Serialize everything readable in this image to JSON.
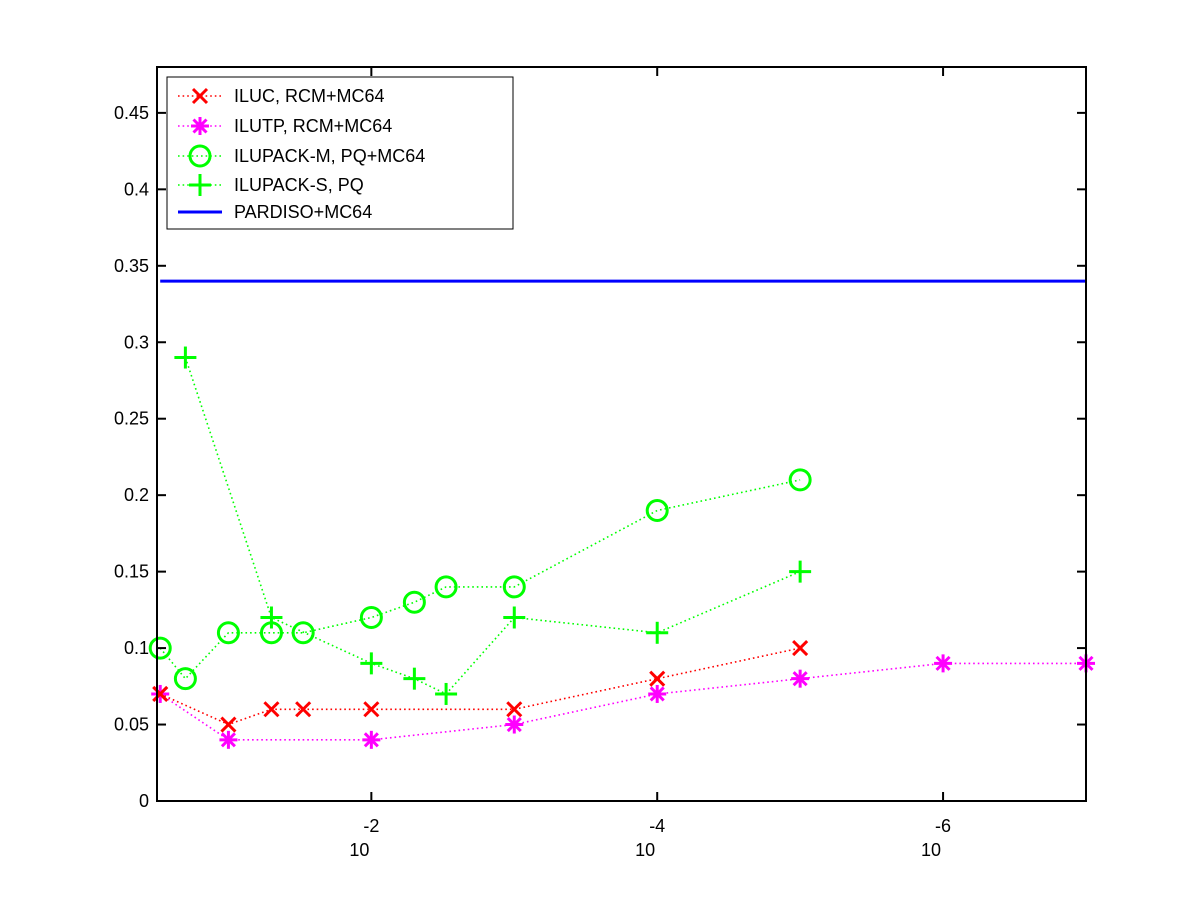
{
  "chart_data": {
    "type": "line",
    "title": "",
    "xlabel": "",
    "ylabel": "",
    "x_scale": "log",
    "x_direction": "decreasing",
    "xlim": [
      0.316,
      1e-07
    ],
    "ylim": [
      0,
      0.48
    ],
    "grid": false,
    "legend_position": "top-left",
    "y_ticks": [
      "0",
      "0.05",
      "0.1",
      "0.15",
      "0.2",
      "0.25",
      "0.3",
      "0.35",
      "0.4",
      "0.45"
    ],
    "x_ticks": [
      {
        "value": 0.01,
        "base": "10",
        "exp": "-2"
      },
      {
        "value": 0.0001,
        "base": "10",
        "exp": "-4"
      },
      {
        "value": 1e-06,
        "base": "10",
        "exp": "-6"
      }
    ],
    "series": [
      {
        "name": "ILUC, RCM+MC64",
        "color": "#ff0000",
        "marker": "x",
        "line_style": "dotted",
        "x": [
          0.3,
          0.1,
          0.05,
          0.03,
          0.01,
          0.001,
          0.0001,
          1e-05
        ],
        "y": [
          0.07,
          0.05,
          0.06,
          0.06,
          0.06,
          0.06,
          0.08,
          0.1
        ]
      },
      {
        "name": "ILUTP, RCM+MC64",
        "color": "#ff00ff",
        "marker": "asterisk",
        "line_style": "dotted",
        "x": [
          0.3,
          0.1,
          0.01,
          0.001,
          0.0001,
          1e-05,
          1e-06,
          1e-07
        ],
        "y": [
          0.07,
          0.04,
          0.04,
          0.05,
          0.07,
          0.08,
          0.09,
          0.09
        ]
      },
      {
        "name": "ILUPACK-M, PQ+MC64",
        "color": "#00ff00",
        "marker": "circle",
        "line_style": "dotted",
        "x": [
          0.3,
          0.2,
          0.1,
          0.05,
          0.03,
          0.01,
          0.005,
          0.003,
          0.001,
          0.0001,
          1e-05
        ],
        "y": [
          0.1,
          0.08,
          0.11,
          0.11,
          0.11,
          0.12,
          0.13,
          0.14,
          0.14,
          0.19,
          0.21
        ]
      },
      {
        "name": "ILUPACK-S, PQ",
        "color": "#00ff00",
        "marker": "plus",
        "line_style": "dotted",
        "x": [
          0.2,
          0.05,
          0.01,
          0.005,
          0.003,
          0.001,
          0.0001,
          1e-05
        ],
        "y": [
          0.29,
          0.12,
          0.09,
          0.08,
          0.07,
          0.12,
          0.11,
          0.15
        ]
      },
      {
        "name": "PARDISO+MC64",
        "color": "#0000ff",
        "marker": "none",
        "line_style": "solid",
        "x": [
          0.3,
          1e-07
        ],
        "y": [
          0.34,
          0.34
        ]
      }
    ]
  }
}
